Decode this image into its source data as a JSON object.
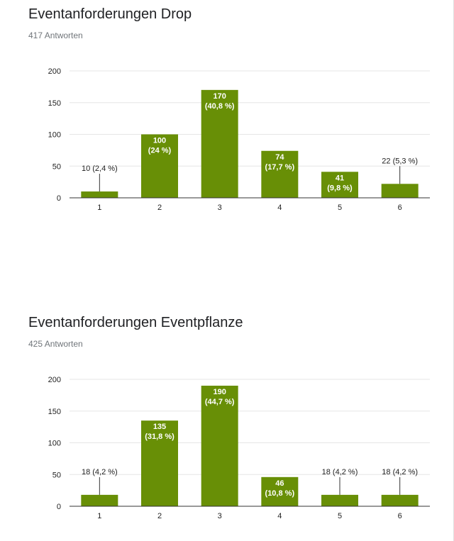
{
  "colors": {
    "bar": "#688f06",
    "grid": "#e6e6e6",
    "axis": "#333333",
    "text": "#222222",
    "label_on_bar": "#ffffff"
  },
  "chart_data": [
    {
      "type": "bar",
      "title": "Eventanforderungen Drop",
      "subtitle": "417 Antworten",
      "categories": [
        "1",
        "2",
        "3",
        "4",
        "5",
        "6"
      ],
      "values": [
        10,
        100,
        170,
        74,
        41,
        22
      ],
      "data_labels": [
        [
          "10 (2,4 %)"
        ],
        [
          "100",
          "(24 %)"
        ],
        [
          "170",
          "(40,8 %)"
        ],
        [
          "74",
          "(17,7 %)"
        ],
        [
          "41",
          "(9,8 %)"
        ],
        [
          "22 (5,3 %)"
        ]
      ],
      "label_outside": [
        true,
        false,
        false,
        false,
        false,
        true
      ],
      "yticks": [
        0,
        50,
        100,
        150,
        200
      ],
      "ylim": [
        0,
        200
      ],
      "grid": true
    },
    {
      "type": "bar",
      "title": "Eventanforderungen Eventpflanze",
      "subtitle": "425 Antworten",
      "categories": [
        "1",
        "2",
        "3",
        "4",
        "5",
        "6"
      ],
      "values": [
        18,
        135,
        190,
        46,
        18,
        18
      ],
      "data_labels": [
        [
          "18 (4,2 %)"
        ],
        [
          "135",
          "(31,8 %)"
        ],
        [
          "190",
          "(44,7 %)"
        ],
        [
          "46",
          "(10,8 %)"
        ],
        [
          "18 (4,2 %)"
        ],
        [
          "18 (4,2 %)"
        ]
      ],
      "label_outside": [
        true,
        false,
        false,
        false,
        true,
        true
      ],
      "yticks": [
        0,
        50,
        100,
        150,
        200
      ],
      "ylim": [
        0,
        200
      ],
      "grid": true
    }
  ]
}
